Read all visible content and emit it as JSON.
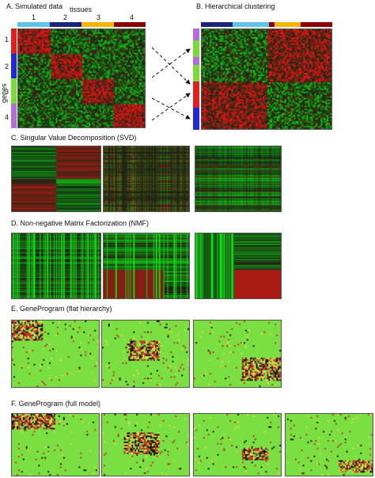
{
  "panelA": {
    "title": "A. Simulated data",
    "tissues_label": "tissues",
    "tissue_numbers": [
      "1",
      "2",
      "3",
      "4"
    ],
    "genes_label": "genes",
    "gene_numbers": [
      "1",
      "2",
      "3",
      "4"
    ]
  },
  "panelB": {
    "title": "B. Hierarchical clustering"
  },
  "panelC": {
    "title": "C. Singular Value Decomposition (SVD)"
  },
  "panelD": {
    "title": "D. Non-negative Matrix Factorization (NMF)"
  },
  "panelE": {
    "title": "E. GeneProgram (flat hierarchy)"
  },
  "panelF": {
    "title": "F. GeneProgram (full model)"
  },
  "colors": {
    "tissue": [
      "#5ec4e8",
      "#1a237e",
      "#f4b400",
      "#8b0000"
    ],
    "gene": [
      "#e0201e",
      "#1e2ad6",
      "#7cd93a",
      "#b46ed8"
    ],
    "heat_red": "#c0392b",
    "heat_green": "#7ae041",
    "heat_black": "#1a1a1a"
  }
}
